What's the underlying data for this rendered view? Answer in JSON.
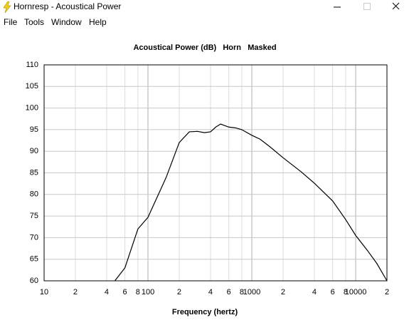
{
  "window": {
    "title": "Hornresp - Acoustical Power",
    "menu": [
      "File",
      "Tools",
      "Window",
      "Help"
    ]
  },
  "chart_data": {
    "type": "line",
    "title": "Acoustical Power (dB)   Horn   Masked",
    "x_label": "Frequency (hertz)",
    "x": [
      48,
      60,
      80,
      100,
      150,
      200,
      250,
      300,
      350,
      400,
      450,
      500,
      600,
      700,
      800,
      1000,
      1200,
      1500,
      2000,
      3000,
      4000,
      6000,
      8000,
      10000,
      13000,
      16000,
      20000
    ],
    "series": [
      {
        "color": "#000000",
        "values": [
          60,
          63,
          72,
          74.7,
          84,
          92,
          94.5,
          94.6,
          94.3,
          94.5,
          95.6,
          96.3,
          95.6,
          95.4,
          95,
          93.7,
          92.8,
          91,
          88.5,
          85.2,
          82.6,
          78.5,
          74.2,
          70.5,
          67,
          64,
          60
        ]
      }
    ],
    "xlim": [
      10,
      20000
    ],
    "ylim": [
      60,
      110
    ],
    "x_log": true,
    "grid": true,
    "xticks": [
      10,
      {
        "value": 20,
        "label": "2"
      },
      {
        "value": 40,
        "label": "4"
      },
      {
        "value": 60,
        "label": "6"
      },
      {
        "value": 80,
        "label": "8"
      },
      100,
      {
        "value": 200,
        "label": "2"
      },
      {
        "value": 400,
        "label": "4"
      },
      {
        "value": 600,
        "label": "6"
      },
      {
        "value": 800,
        "label": "8"
      },
      1000,
      {
        "value": 2000,
        "label": "2"
      },
      {
        "value": 4000,
        "label": "4"
      },
      {
        "value": 6000,
        "label": "6"
      },
      {
        "value": 8000,
        "label": "8"
      },
      10000,
      {
        "value": 20000,
        "label": "2"
      }
    ],
    "yticks": [
      60,
      65,
      70,
      75,
      80,
      85,
      90,
      95,
      100,
      105,
      110
    ]
  }
}
